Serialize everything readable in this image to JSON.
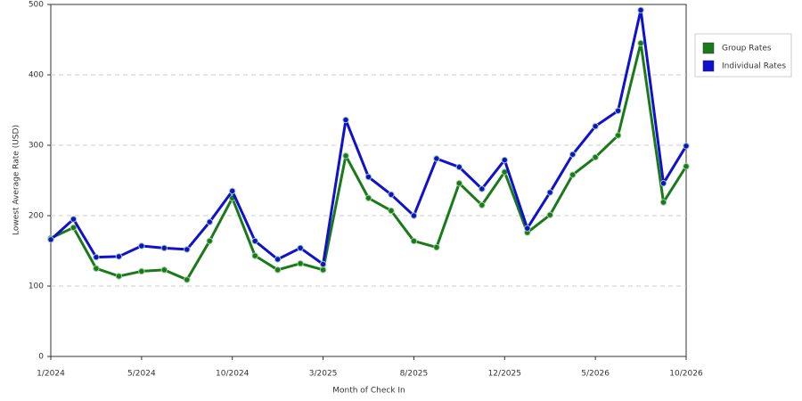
{
  "chart_data": {
    "type": "line",
    "x_label": "Month of Check In",
    "y_label": "Lowest Average Rate (USD)",
    "categories": [
      "1/2024",
      null,
      null,
      null,
      "5/2024",
      null,
      null,
      null,
      "10/2024",
      null,
      null,
      null,
      "3/2025",
      null,
      null,
      null,
      "8/2025",
      null,
      null,
      null,
      "12/2025",
      null,
      null,
      null,
      "5/2026",
      null,
      null,
      null,
      "10/2026"
    ],
    "series": [
      {
        "name": "Group Rates",
        "color": "#1a7a1a",
        "values": [
          168,
          183,
          125,
          114,
          121,
          123,
          109,
          164,
          225,
          143,
          123,
          132,
          123,
          285,
          225,
          207,
          164,
          155,
          246,
          215,
          262,
          176,
          201,
          258,
          283,
          314,
          445,
          219,
          270
        ]
      },
      {
        "name": "Individual Rates",
        "color": "#1010d0",
        "values": [
          166,
          195,
          141,
          142,
          157,
          154,
          152,
          191,
          235,
          164,
          138,
          154,
          131,
          336,
          255,
          230,
          200,
          281,
          269,
          238,
          279,
          182,
          233,
          287,
          327,
          349,
          492,
          246,
          299
        ]
      }
    ],
    "ylim": [
      0,
      500
    ],
    "yticks": [
      0,
      100,
      200,
      300,
      400,
      500
    ],
    "grid": true,
    "legend": "right"
  }
}
